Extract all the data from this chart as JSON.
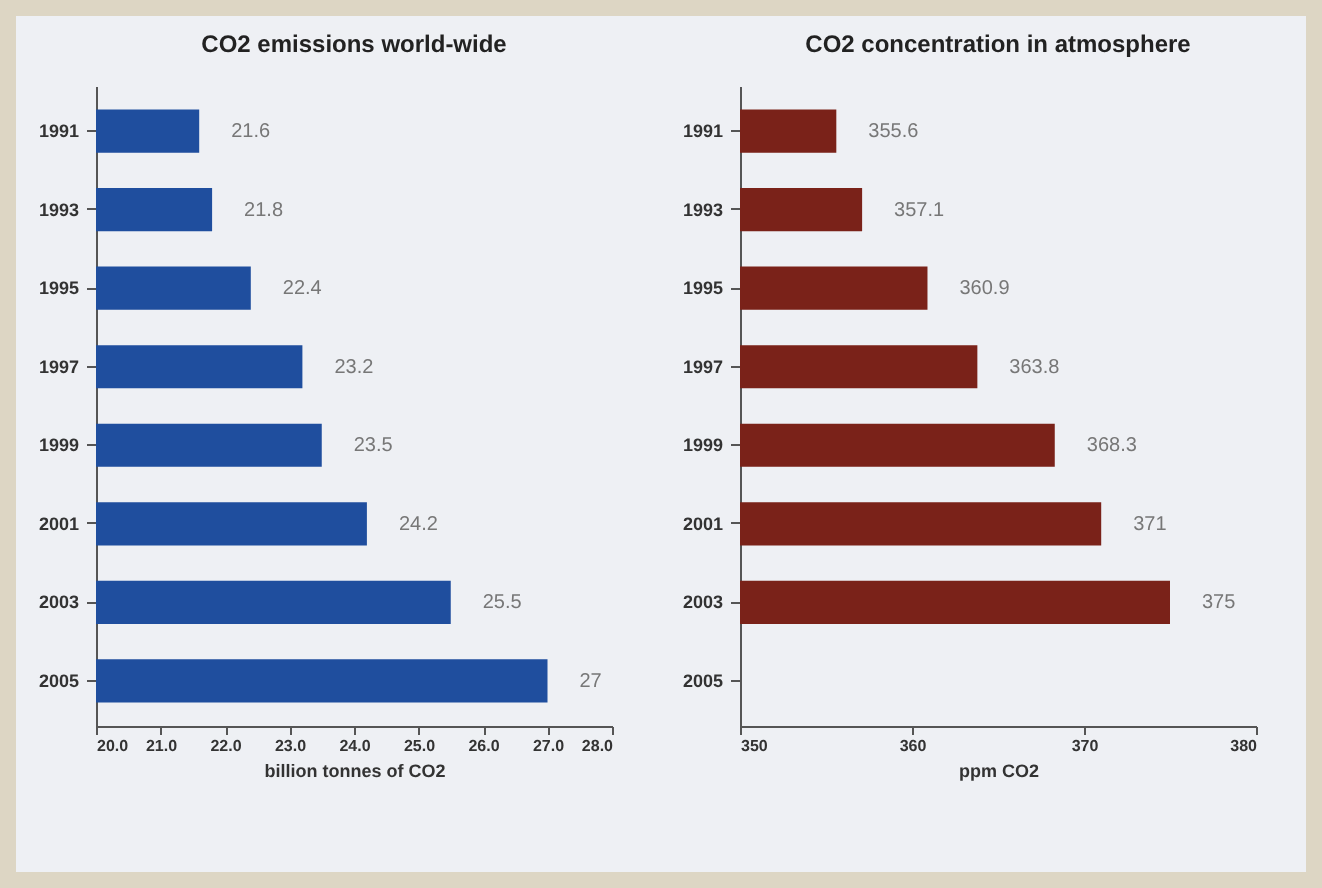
{
  "chart_data": [
    {
      "type": "bar",
      "orientation": "horizontal",
      "title": "CO2 emissions world-wide",
      "xlabel": "billion tonnes of CO2",
      "categories": [
        "1991",
        "1993",
        "1995",
        "1997",
        "1999",
        "2001",
        "2003",
        "2005"
      ],
      "series": [
        {
          "color": "#1f4e9e",
          "values": [
            21.6,
            21.8,
            22.4,
            23.2,
            23.5,
            24.2,
            25.5,
            27
          ]
        }
      ],
      "xlim": [
        20,
        28
      ],
      "xticks": [
        {
          "value": 20,
          "label": "20.0"
        },
        {
          "value": 21,
          "label": "21.0"
        },
        {
          "value": 22,
          "label": "22.0"
        },
        {
          "value": 23,
          "label": "23.0"
        },
        {
          "value": 24,
          "label": "24.0"
        },
        {
          "value": 25,
          "label": "25.0"
        },
        {
          "value": 26,
          "label": "26.0"
        },
        {
          "value": 27,
          "label": "27.0"
        },
        {
          "value": 28,
          "label": "28.0"
        }
      ],
      "data_labels": true,
      "grid": false
    },
    {
      "type": "bar",
      "orientation": "horizontal",
      "title": "CO2 concentration in atmosphere",
      "xlabel": "ppm CO2",
      "categories": [
        "1991",
        "1993",
        "1995",
        "1997",
        "1999",
        "2001",
        "2003",
        "2005"
      ],
      "series": [
        {
          "color": "#7a2219",
          "values": [
            355.6,
            357.1,
            360.9,
            363.8,
            368.3,
            371,
            375,
            null
          ]
        }
      ],
      "xlim": [
        350,
        380
      ],
      "xticks": [
        350,
        360,
        370,
        380
      ],
      "data_labels": true,
      "grid": false
    }
  ]
}
